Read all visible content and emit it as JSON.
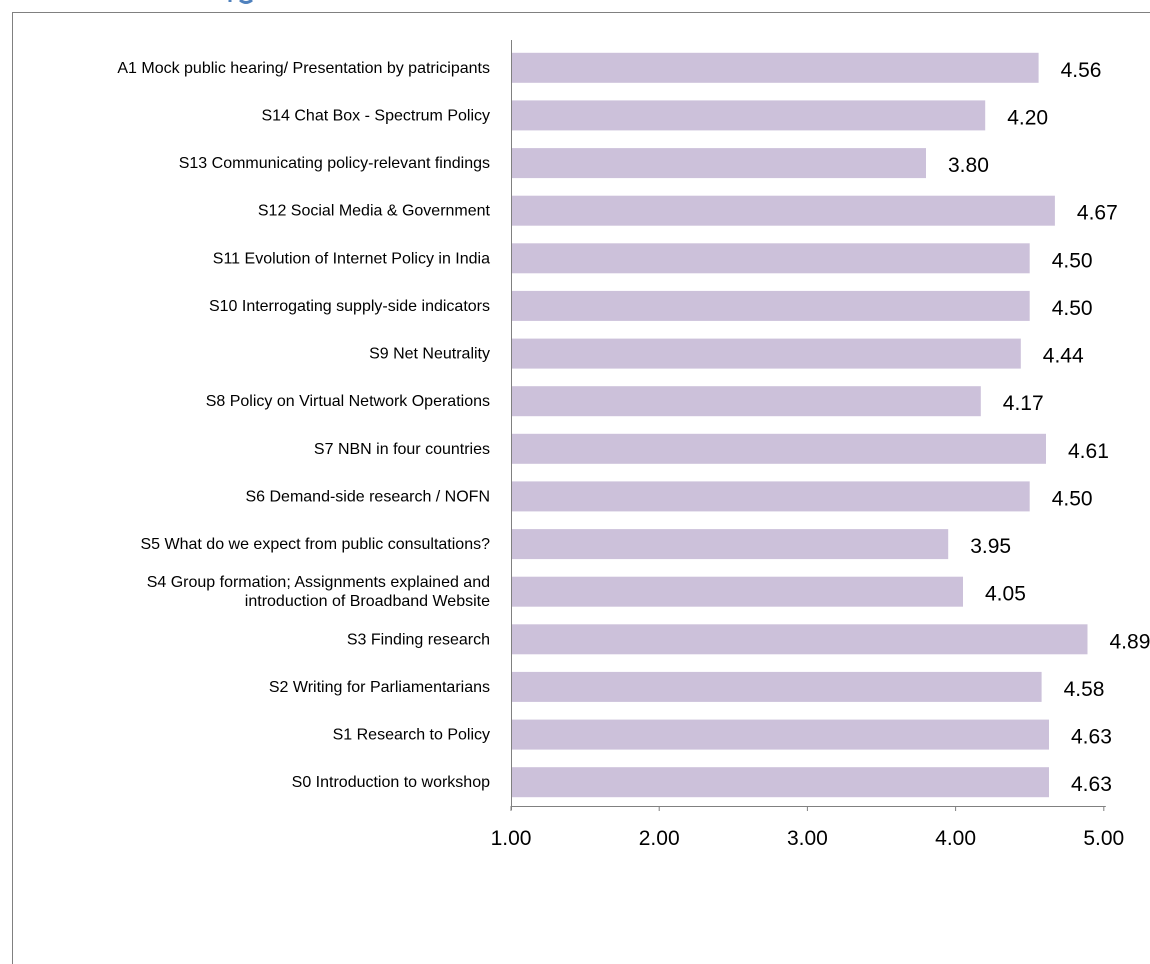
{
  "colors": {
    "bar": "#ccc1da",
    "axis": "#808080",
    "frame": "#808080",
    "title_fragment": "#4f81bd"
  },
  "chart_data": {
    "type": "bar",
    "orientation": "horizontal",
    "categories": [
      [
        "A1 Mock public hearing/ Presentation by patricipants"
      ],
      [
        "S14 Chat Box - Spectrum Policy"
      ],
      [
        "S13 Communicating policy-relevant findings"
      ],
      [
        "S12 Social Media & Government"
      ],
      [
        "S11 Evolution of Internet Policy in India"
      ],
      [
        "S10 Interrogating supply-side indicators"
      ],
      [
        "S9 Net Neutrality"
      ],
      [
        "S8 Policy on Virtual Network Operations"
      ],
      [
        "S7 NBN in four countries"
      ],
      [
        "S6 Demand-side research / NOFN"
      ],
      [
        "S5 What do we expect from public consultations?"
      ],
      [
        "S4 Group formation; Assignments explained and",
        "introduction of Broadband Website"
      ],
      [
        "S3 Finding research"
      ],
      [
        "S2 Writing for Parliamentarians"
      ],
      [
        "S1 Research to Policy"
      ],
      [
        "S0 Introduction to workshop"
      ]
    ],
    "values": [
      4.56,
      4.2,
      3.8,
      4.67,
      4.5,
      4.5,
      4.44,
      4.17,
      4.61,
      4.5,
      3.95,
      4.05,
      4.89,
      4.58,
      4.63,
      4.63
    ],
    "value_labels": [
      "4.56",
      "4.20",
      "3.80",
      "4.67",
      "4.50",
      "4.50",
      "4.44",
      "4.17",
      "4.61",
      "4.50",
      "3.95",
      "4.05",
      "4.89",
      "4.58",
      "4.63",
      "4.63"
    ],
    "title": "",
    "xlabel": "",
    "ylabel": "",
    "xlim": [
      1.0,
      5.0
    ],
    "xticks": [
      1.0,
      2.0,
      3.0,
      4.0,
      5.0
    ],
    "xtick_labels": [
      "1.00",
      "2.00",
      "3.00",
      "4.00",
      "5.00"
    ],
    "grid": false,
    "legend": "none"
  }
}
